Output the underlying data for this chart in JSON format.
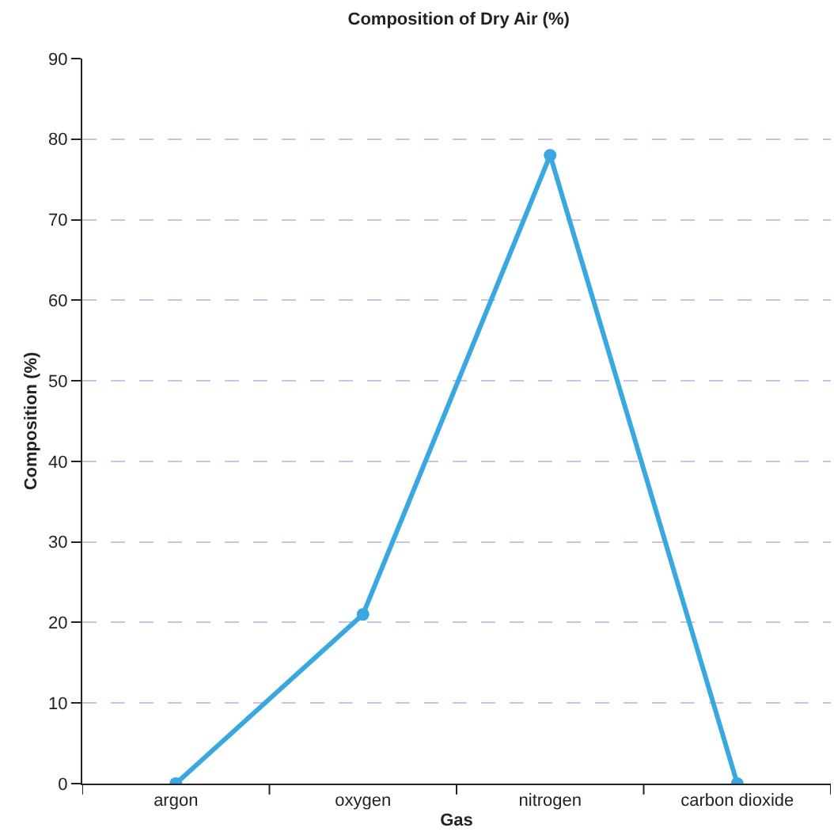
{
  "chart_data": {
    "type": "line",
    "title": "Composition of Dry Air (%)",
    "xlabel": "Gas",
    "ylabel": "Composition (%)",
    "categories": [
      "argon",
      "oxygen",
      "nitrogen",
      "carbon dioxide"
    ],
    "series": [
      {
        "color": "#3aa8e0",
        "values": [
          0,
          21,
          78,
          0
        ]
      }
    ],
    "ylim": [
      0,
      90
    ],
    "yticks": [
      0,
      10,
      20,
      30,
      40,
      50,
      60,
      70,
      80,
      90
    ],
    "grid": "y",
    "marker": "circle",
    "line_style": "solid"
  }
}
